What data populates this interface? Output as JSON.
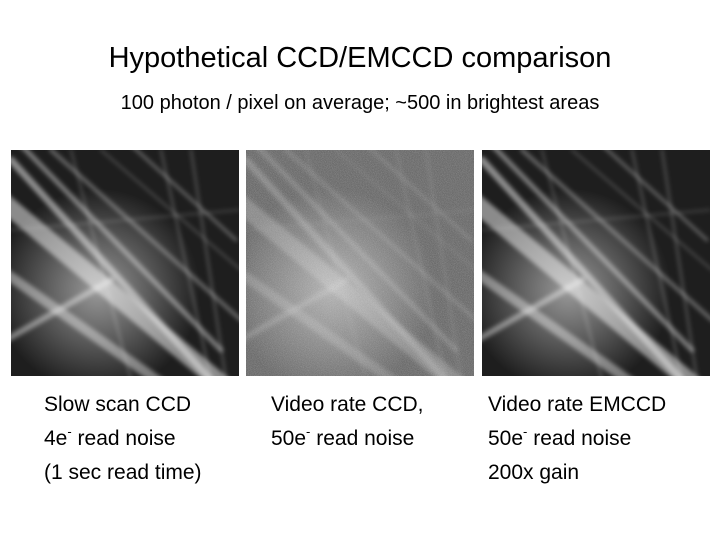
{
  "slide": {
    "title": "Hypothetical CCD/EMCCD comparison",
    "subtitle": "100 photon / pixel on average; ~500 in brightest areas"
  },
  "panels": [
    {
      "noise": "low",
      "caption": [
        {
          "pre": "Slow scan CCD",
          "sup": "",
          "post": ""
        },
        {
          "pre": "4e",
          "sup": "-",
          "post": " read noise"
        },
        {
          "pre": "(1 sec read time)",
          "sup": "",
          "post": ""
        }
      ]
    },
    {
      "noise": "high",
      "caption": [
        {
          "pre": "Video rate CCD,",
          "sup": "",
          "post": ""
        },
        {
          "pre": "50e",
          "sup": "-",
          "post": " read noise"
        }
      ]
    },
    {
      "noise": "low",
      "caption": [
        {
          "pre": "Video rate EMCCD",
          "sup": "",
          "post": ""
        },
        {
          "pre": "50e",
          "sup": "-",
          "post": " read noise"
        },
        {
          "pre": "200x gain",
          "sup": "",
          "post": ""
        }
      ]
    }
  ]
}
